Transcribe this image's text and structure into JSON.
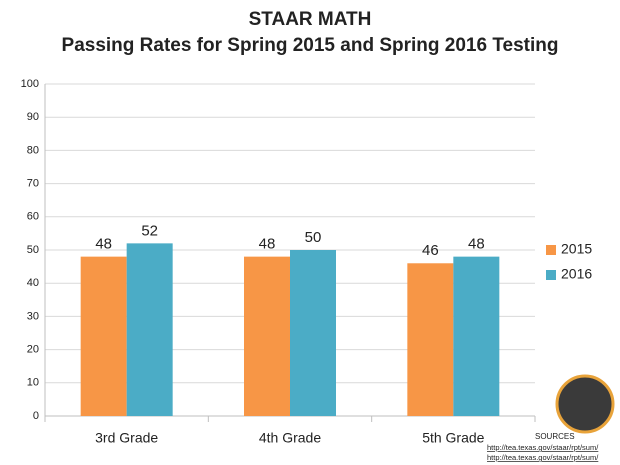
{
  "chart_data": {
    "type": "bar",
    "title": "STAAR MATH",
    "subtitle": "Passing Rates for Spring 2015 and Spring 2016 Testing",
    "categories": [
      "3rd Grade",
      "4th Grade",
      "5th Grade"
    ],
    "series": [
      {
        "name": "2015",
        "color": "#f79646",
        "values": [
          48,
          48,
          46
        ]
      },
      {
        "name": "2016",
        "color": "#4bacc6",
        "values": [
          52,
          50,
          48
        ]
      }
    ],
    "ylim": [
      0,
      100
    ],
    "yticks": [
      0,
      10,
      20,
      30,
      40,
      50,
      60,
      70,
      80,
      90,
      100
    ],
    "grid": true,
    "legend": "right",
    "sources": {
      "heading": "SOURCES",
      "links": [
        "http://tea.texas.gov/staar/rpt/sum/",
        "http://tea.texas.gov/staar/rpt/sum/"
      ]
    }
  }
}
